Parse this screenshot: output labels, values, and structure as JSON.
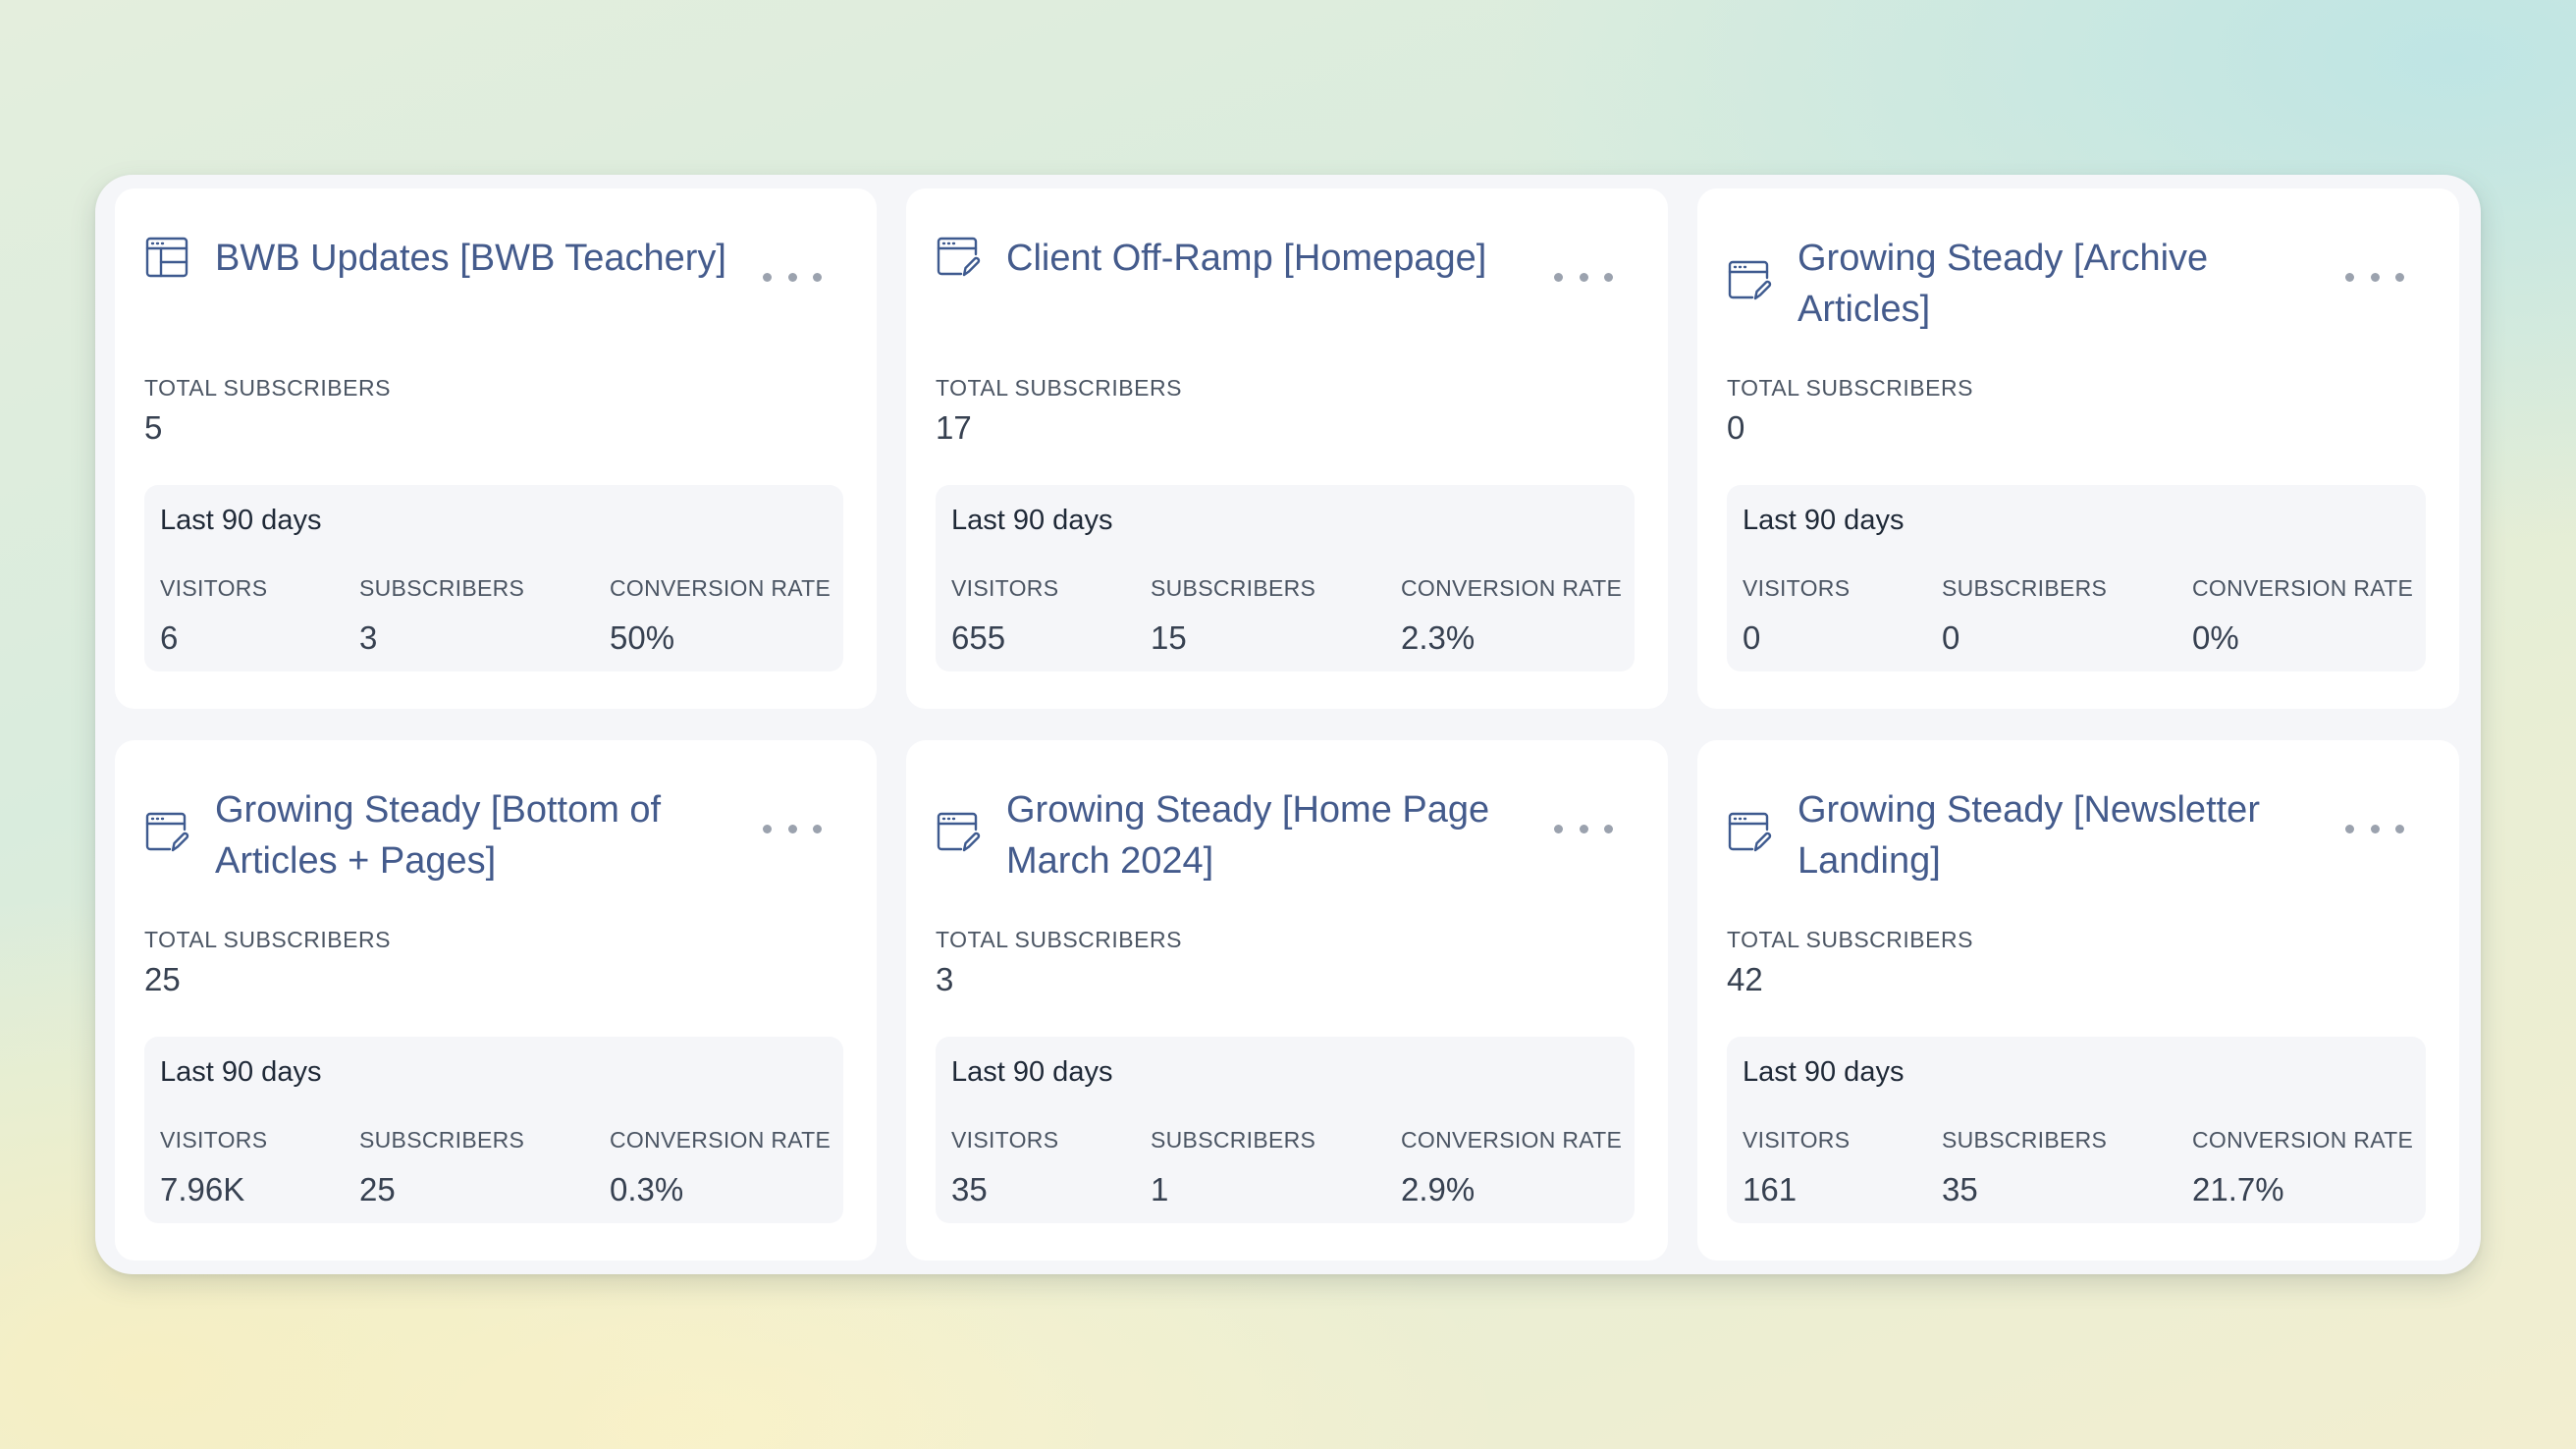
{
  "stats_labels": {
    "total_subscribers": "TOTAL SUBSCRIBERS",
    "period": "Last 90 days",
    "visitors": "VISITORS",
    "subscribers": "SUBSCRIBERS",
    "conversion_rate": "CONVERSION RATE"
  },
  "colors": {
    "title": "#445b8c",
    "icon": "#3e5a8f",
    "card_background": "#ffffff",
    "stats_background": "#f5f6f9"
  },
  "forms": [
    {
      "title": "BWB Updates [BWB Teachery]",
      "icon": "table-icon",
      "total_subscribers": "5",
      "visitors": "6",
      "subscribers": "3",
      "conversion_rate": "50%"
    },
    {
      "title": "Client Off-Ramp [Homepage]",
      "icon": "form-edit-icon",
      "total_subscribers": "17",
      "visitors": "655",
      "subscribers": "15",
      "conversion_rate": "2.3%"
    },
    {
      "title": "Growing Steady [Archive Articles]",
      "icon": "form-edit-icon",
      "total_subscribers": "0",
      "visitors": "0",
      "subscribers": "0",
      "conversion_rate": "0%"
    },
    {
      "title": "Growing Steady [Bottom of Articles + Pages]",
      "icon": "form-edit-icon",
      "total_subscribers": "25",
      "visitors": "7.96K",
      "subscribers": "25",
      "conversion_rate": "0.3%"
    },
    {
      "title": "Growing Steady [Home Page March 2024]",
      "icon": "form-edit-icon",
      "total_subscribers": "3",
      "visitors": "35",
      "subscribers": "1",
      "conversion_rate": "2.9%"
    },
    {
      "title": "Growing Steady [Newsletter Landing]",
      "icon": "form-edit-icon",
      "total_subscribers": "42",
      "visitors": "161",
      "subscribers": "35",
      "conversion_rate": "21.7%"
    }
  ]
}
